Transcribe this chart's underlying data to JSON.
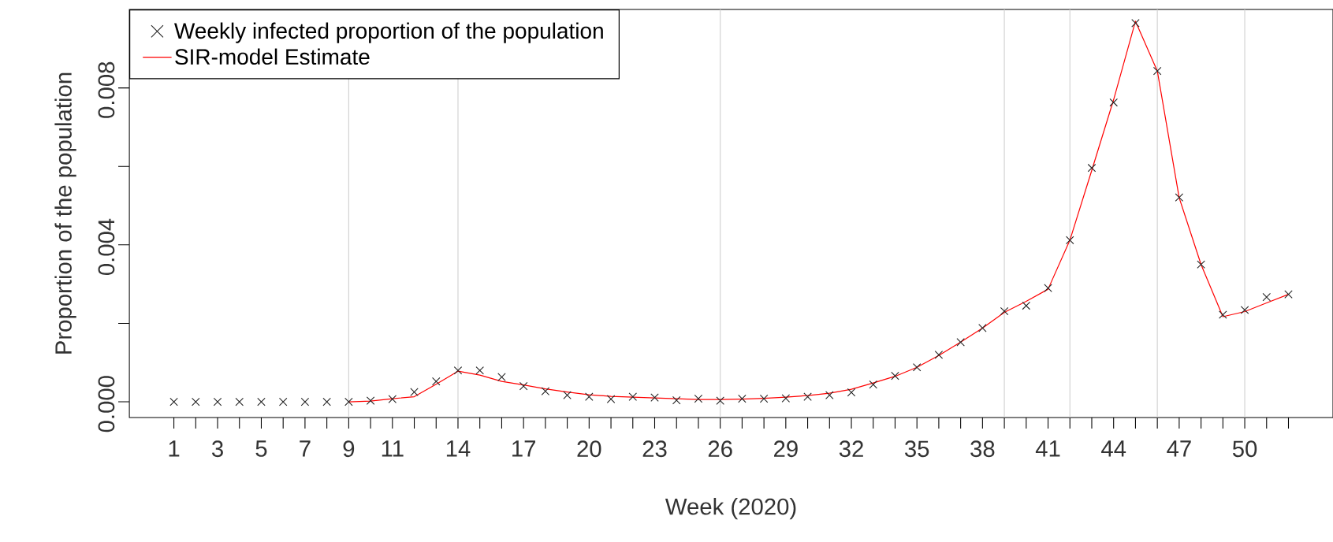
{
  "chart_data": {
    "type": "line",
    "xlabel": "Week (2020)",
    "ylabel": "Proportion of the population",
    "x": [
      1,
      2,
      3,
      4,
      5,
      6,
      7,
      8,
      9,
      10,
      11,
      12,
      13,
      14,
      15,
      16,
      17,
      18,
      19,
      20,
      21,
      22,
      23,
      24,
      25,
      26,
      27,
      28,
      29,
      30,
      31,
      32,
      33,
      34,
      35,
      36,
      37,
      38,
      39,
      40,
      41,
      42,
      43,
      44,
      45,
      46,
      47,
      48,
      49,
      50,
      51,
      52
    ],
    "xlim": [
      -1.04,
      54.04
    ],
    "ylim": [
      -0.0004,
      0.01
    ],
    "xticks": [
      1,
      {
        "value": 2,
        "label": null
      },
      3,
      {
        "value": 4,
        "label": null
      },
      5,
      {
        "value": 6,
        "label": null
      },
      7,
      {
        "value": 8,
        "label": null
      },
      9,
      {
        "value": 10,
        "label": null
      },
      11,
      {
        "value": 12,
        "label": null
      },
      {
        "value": 13,
        "label": null
      },
      14,
      {
        "value": 15,
        "label": null
      },
      {
        "value": 16,
        "label": null
      },
      17,
      {
        "value": 18,
        "label": null
      },
      {
        "value": 19,
        "label": null
      },
      20,
      {
        "value": 21,
        "label": null
      },
      {
        "value": 22,
        "label": null
      },
      23,
      {
        "value": 24,
        "label": null
      },
      {
        "value": 25,
        "label": null
      },
      26,
      {
        "value": 27,
        "label": null
      },
      {
        "value": 28,
        "label": null
      },
      29,
      {
        "value": 30,
        "label": null
      },
      {
        "value": 31,
        "label": null
      },
      32,
      {
        "value": 33,
        "label": null
      },
      {
        "value": 34,
        "label": null
      },
      35,
      {
        "value": 36,
        "label": null
      },
      {
        "value": 37,
        "label": null
      },
      38,
      {
        "value": 39,
        "label": null
      },
      {
        "value": 40,
        "label": null
      },
      41,
      {
        "value": 42,
        "label": null
      },
      {
        "value": 43,
        "label": null
      },
      44,
      {
        "value": 45,
        "label": null
      },
      {
        "value": 46,
        "label": null
      },
      47,
      {
        "value": 48,
        "label": null
      },
      {
        "value": 49,
        "label": null
      },
      50,
      {
        "value": 51,
        "label": null
      },
      {
        "value": 52,
        "label": null
      }
    ],
    "yticks": [
      {
        "value": 0,
        "label": "0.000"
      },
      {
        "value": 0.002,
        "label": null
      },
      {
        "value": 0.004,
        "label": "0.004"
      },
      {
        "value": 0.006,
        "label": null
      },
      {
        "value": 0.008,
        "label": "0.008"
      }
    ],
    "legend": "top left",
    "ref_lines": [
      {
        "axis": "x",
        "value": 9,
        "color": "#d3d3d3"
      },
      {
        "axis": "x",
        "value": 14,
        "color": "#d3d3d3"
      },
      {
        "axis": "x",
        "value": 26,
        "color": "#d3d3d3"
      },
      {
        "axis": "x",
        "value": 39,
        "color": "#d3d3d3"
      },
      {
        "axis": "x",
        "value": 42,
        "color": "#d3d3d3"
      },
      {
        "axis": "x",
        "value": 46,
        "color": "#d3d3d3"
      },
      {
        "axis": "x",
        "value": 50,
        "color": "#d3d3d3"
      }
    ],
    "series": [
      {
        "name": "Weekly infected proportion of the population",
        "type": "scatter",
        "marker": "cross",
        "color": "#222222",
        "values": [
          0,
          0,
          0,
          0,
          0,
          0,
          0,
          0,
          0,
          3e-05,
          7e-05,
          0.00025,
          0.00052,
          0.0008,
          0.0008,
          0.00063,
          0.0004,
          0.00027,
          0.00017,
          0.00013,
          7e-05,
          0.00013,
          0.00011,
          4e-05,
          8e-05,
          3e-05,
          8e-05,
          8e-05,
          9e-05,
          0.00013,
          0.00017,
          0.00024,
          0.00044,
          0.00066,
          0.00088,
          0.0012,
          0.00152,
          0.00188,
          0.00231,
          0.00245,
          0.0029,
          0.00412,
          0.00596,
          0.00763,
          0.00965,
          0.00843,
          0.00521,
          0.0035,
          0.00222,
          0.00234,
          0.00267,
          0.00274
        ]
      },
      {
        "name": "SIR-model Estimate",
        "color": "#ff0000",
        "values": [
          null,
          null,
          null,
          null,
          null,
          null,
          null,
          null,
          0,
          2e-05,
          8e-05,
          0.00013,
          0.00045,
          0.00078,
          0.00068,
          0.00052,
          0.00043,
          0.00033,
          0.00025,
          0.00018,
          0.00014,
          0.00012,
          0.0001,
          8e-05,
          6e-05,
          6e-05,
          7e-05,
          9e-05,
          0.00012,
          0.00016,
          0.00022,
          0.00032,
          0.00048,
          0.00065,
          0.00088,
          0.00118,
          0.00152,
          0.00188,
          0.00228,
          0.00256,
          0.00287,
          0.00412,
          0.0059,
          0.0077,
          0.0097,
          0.00843,
          0.0052,
          0.0035,
          0.00217,
          0.0023,
          0.00252,
          0.00274
        ]
      }
    ]
  }
}
